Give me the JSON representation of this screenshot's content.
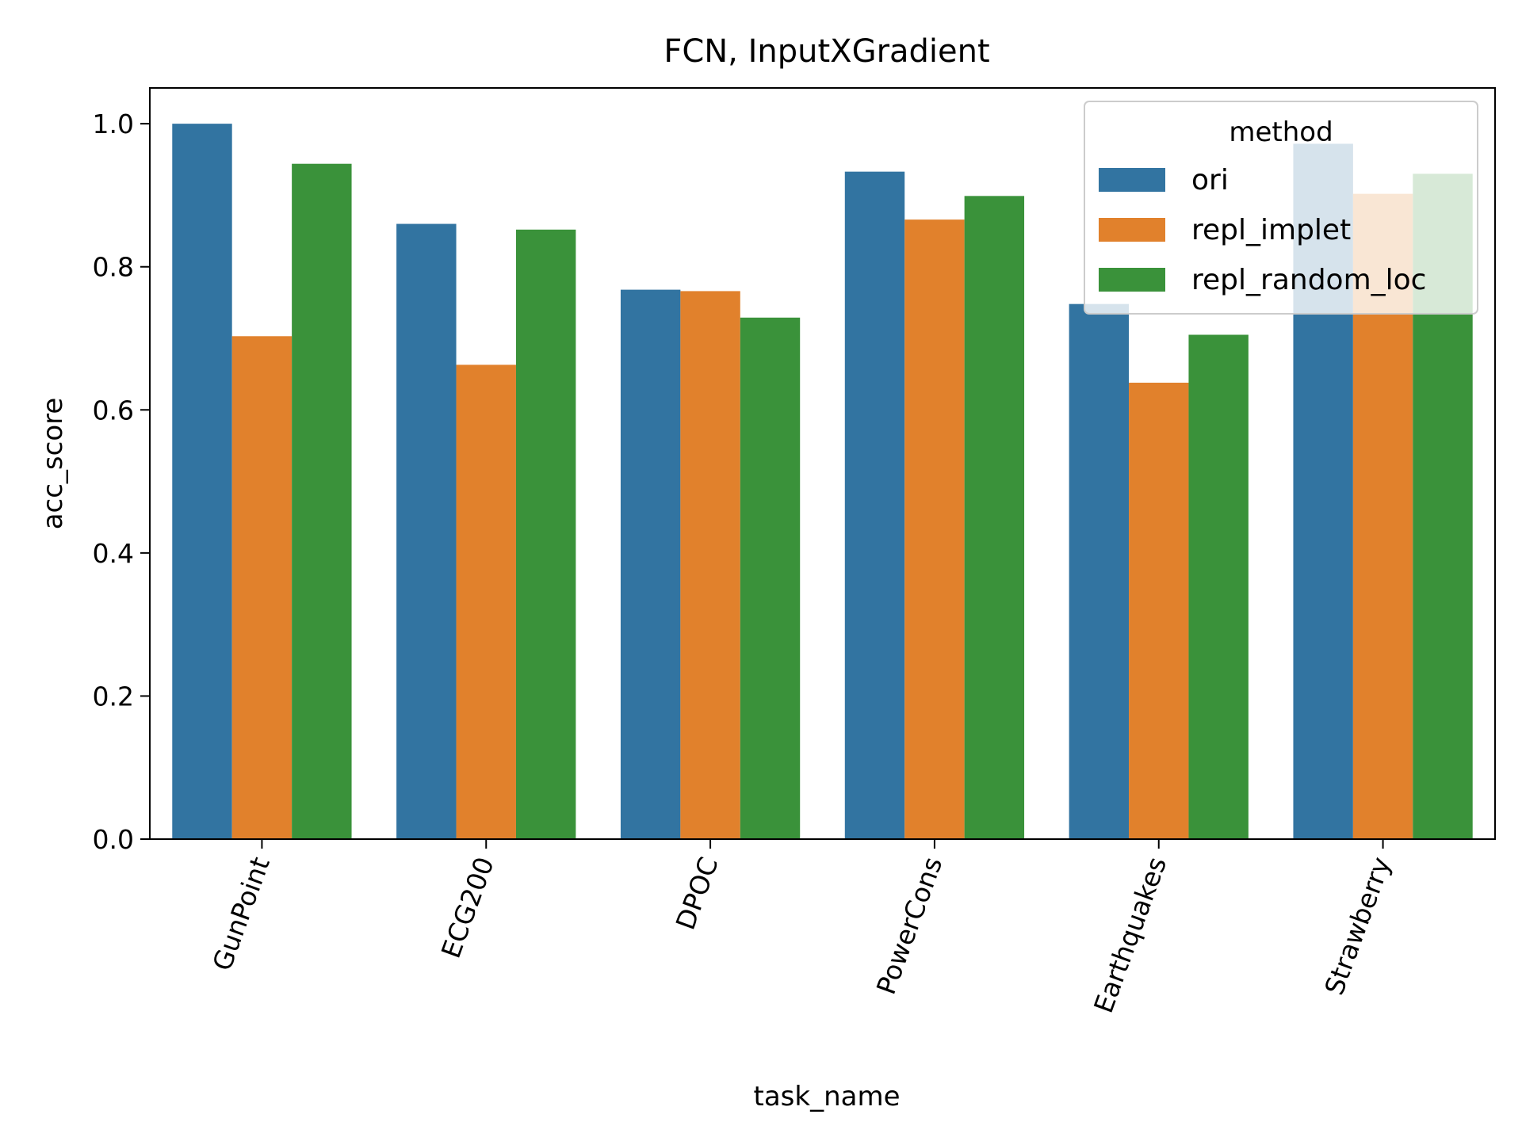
{
  "chart_data": {
    "type": "bar",
    "title": "FCN, InputXGradient",
    "xlabel": "task_name",
    "ylabel": "acc_score",
    "categories": [
      "GunPoint",
      "ECG200",
      "DPOC",
      "PowerCons",
      "Earthquakes",
      "Strawberry"
    ],
    "series": [
      {
        "name": "ori",
        "color": "#3274a1",
        "values": [
          1.0,
          0.86,
          0.768,
          0.933,
          0.748,
          0.972
        ]
      },
      {
        "name": "repl_implet",
        "color": "#e1812c",
        "values": [
          0.703,
          0.663,
          0.766,
          0.866,
          0.638,
          0.902
        ]
      },
      {
        "name": "repl_random_loc",
        "color": "#3a923a",
        "values": [
          0.944,
          0.852,
          0.729,
          0.899,
          0.705,
          0.93
        ]
      }
    ],
    "ylim": [
      0,
      1.05
    ],
    "yticks": [
      "0.0",
      "0.2",
      "0.4",
      "0.6",
      "0.8",
      "1.0"
    ],
    "legend": {
      "title": "method",
      "position": "top-right"
    },
    "grid": false
  }
}
